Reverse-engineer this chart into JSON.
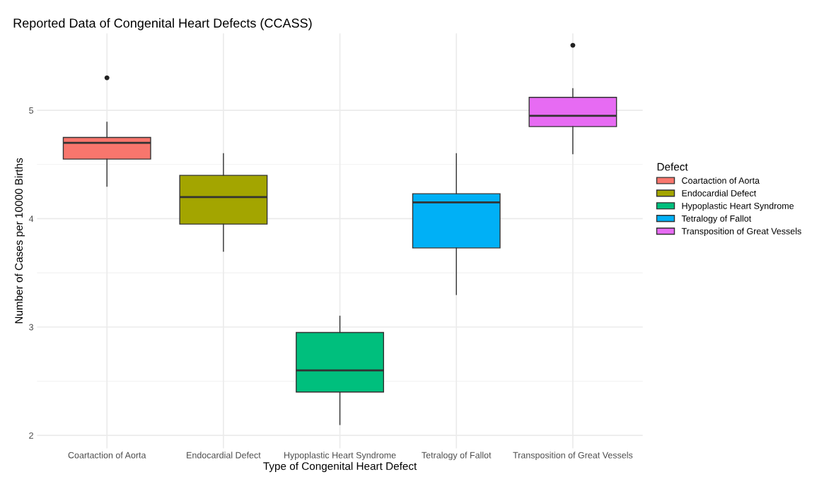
{
  "chart_data": {
    "type": "box",
    "title": "Reported Data of Congenital Heart Defects (CCASS)",
    "xlabel": "Type of Congenital Heart Defect",
    "ylabel": "Number of Cases per 10000 Births",
    "legend_title": "Defect",
    "legend": "right",
    "grid": true,
    "categories": [
      "Coartaction of Aorta",
      "Endocardial Defect",
      "Hypoplastic Heart Syndrome",
      "Tetralogy of Fallot",
      "Transposition of Great Vessels"
    ],
    "series": [
      {
        "name": "Coartaction of Aorta",
        "color": "#f8766d",
        "boxes": [
          {
            "low": 4.3,
            "q1": 4.55,
            "median": 4.7,
            "q3": 4.75,
            "high": 4.89,
            "outliers": [
              5.3
            ]
          },
          null,
          null,
          null,
          null
        ]
      },
      {
        "name": "Endocardial Defect",
        "color": "#a3a500",
        "boxes": [
          null,
          {
            "low": 3.7,
            "q1": 3.95,
            "median": 4.2,
            "q3": 4.4,
            "high": 4.6
          },
          null,
          null,
          null
        ]
      },
      {
        "name": "Hypoplastic Heart Syndrome",
        "color": "#00bf7d",
        "boxes": [
          null,
          null,
          {
            "low": 2.1,
            "q1": 2.4,
            "median": 2.6,
            "q3": 2.95,
            "high": 3.1
          },
          null,
          null
        ]
      },
      {
        "name": "Tetralogy of Fallot",
        "color": "#00b0f6",
        "boxes": [
          null,
          null,
          null,
          {
            "low": 3.3,
            "q1": 3.73,
            "median": 4.15,
            "q3": 4.23,
            "high": 4.6
          },
          null
        ]
      },
      {
        "name": "Transposition of Great Vessels",
        "color": "#e76bf3",
        "boxes": [
          null,
          null,
          null,
          null,
          {
            "low": 4.6,
            "q1": 4.85,
            "median": 4.95,
            "q3": 5.12,
            "high": 5.2,
            "outliers": [
              5.6
            ]
          }
        ]
      }
    ],
    "ylim": [
      1.88,
      5.71
    ],
    "yticks": [
      2,
      3,
      4,
      5
    ]
  }
}
